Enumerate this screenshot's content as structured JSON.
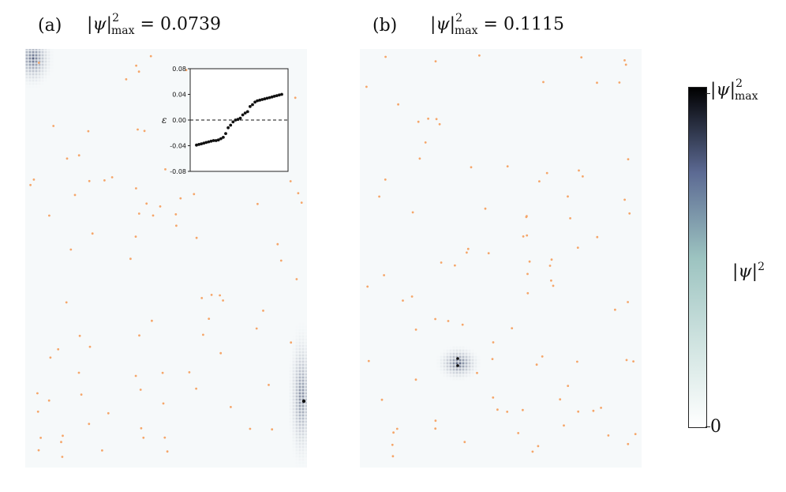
{
  "panel_a": {
    "label": "(a)",
    "title_symbol": "|ψ|",
    "title_sup": "2",
    "title_sub": "max",
    "title_value": "= 0.0739"
  },
  "panel_b": {
    "label": "(b)",
    "title_symbol": "|ψ|",
    "title_sup": "2",
    "title_sub": "max",
    "title_value": "= 0.1115"
  },
  "colorbar": {
    "top_symbol": "|ψ|",
    "top_sup": "2",
    "top_sub": "max",
    "bottom_label": "0",
    "mid_symbol": "|ψ|",
    "mid_sup": "2",
    "colors": [
      "#ffffff",
      "#9cc3c0",
      "#5c6a93",
      "#000000"
    ]
  },
  "chart_data": {
    "type": "scatter",
    "xlabel": "",
    "ylabel": "ε",
    "ylim": [
      -0.08,
      0.08
    ],
    "yticks": [
      "0.08",
      "0.04",
      "0.00",
      "-0.04",
      "-0.08"
    ],
    "reference_line_y": 0.0,
    "x": [
      1,
      2,
      3,
      4,
      5,
      6,
      7,
      8,
      9,
      10,
      11,
      12,
      13,
      14,
      15,
      16,
      17,
      18,
      19,
      20,
      21,
      22,
      23,
      24,
      25,
      26,
      27,
      28,
      29,
      30,
      31,
      32,
      33,
      34,
      35,
      36
    ],
    "y": [
      -0.039,
      -0.038,
      -0.037,
      -0.036,
      -0.035,
      -0.034,
      -0.033,
      -0.032,
      -0.032,
      -0.031,
      -0.029,
      -0.027,
      -0.021,
      -0.012,
      -0.008,
      -0.003,
      0.0,
      0.001,
      0.003,
      0.008,
      0.011,
      0.013,
      0.021,
      0.024,
      0.028,
      0.03,
      0.031,
      0.032,
      0.033,
      0.034,
      0.035,
      0.036,
      0.037,
      0.038,
      0.039,
      0.04
    ]
  },
  "colors": {
    "defect_dots": "#f5a66a",
    "lattice_bg": "#f6f9fa"
  }
}
